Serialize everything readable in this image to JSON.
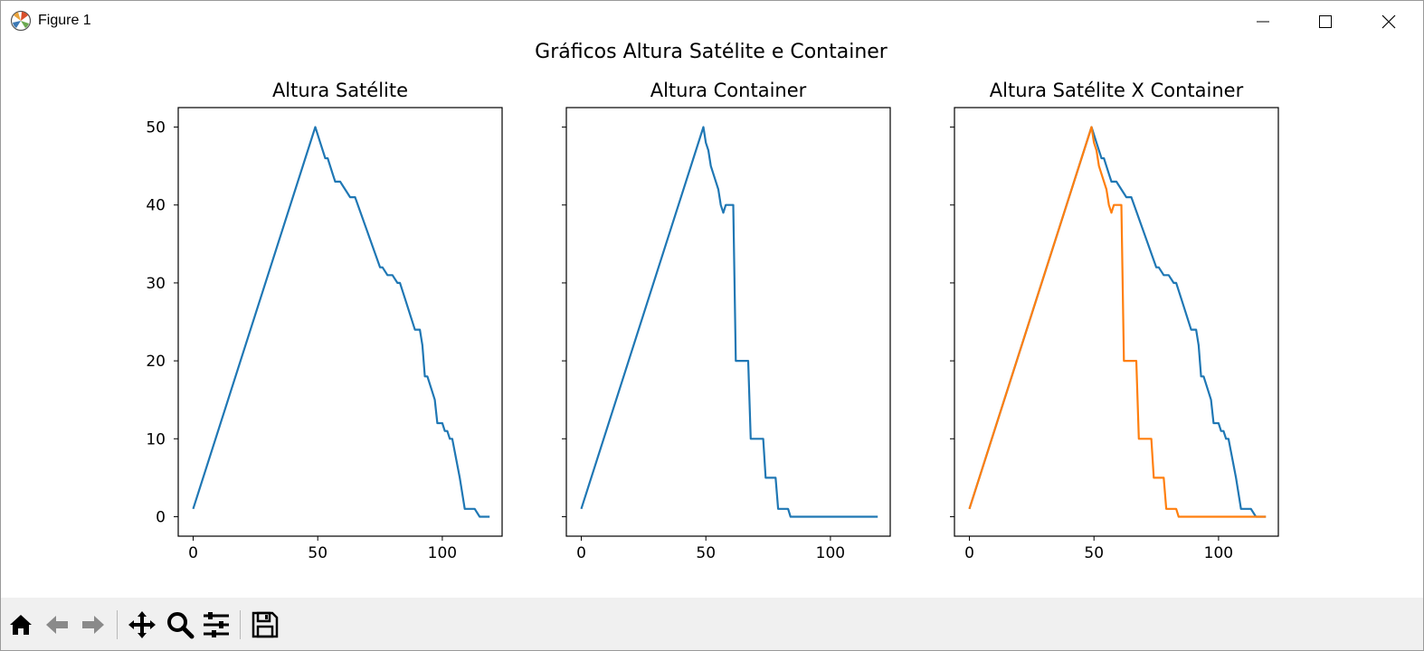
{
  "window": {
    "title": "Figure 1",
    "icons": [
      "matplotlib-logo-icon",
      "minimize-icon",
      "maximize-icon",
      "close-icon"
    ]
  },
  "figure": {
    "suptitle": "Gráficos Altura Satélite e Container"
  },
  "colors": {
    "series_blue": "#1f77b4",
    "series_orange": "#ff7f0e",
    "toolbar_bg": "#f0f0f0"
  },
  "toolbar": {
    "icons": [
      "home-icon",
      "back-arrow-icon",
      "forward-arrow-icon",
      "pan-move-icon",
      "zoom-magnifier-icon",
      "configure-subplots-icon",
      "save-icon"
    ]
  },
  "chart_data": [
    {
      "type": "line",
      "title": "Altura Satélite",
      "xlabel": "",
      "ylabel": "",
      "xlim": [
        -6,
        124
      ],
      "ylim": [
        -2.5,
        52.5
      ],
      "xticks": [
        0,
        50,
        100
      ],
      "yticks": [
        0,
        10,
        20,
        30,
        40,
        50
      ],
      "grid": false,
      "series": [
        {
          "color": "#1f77b4",
          "x": [
            0,
            49,
            51,
            53,
            54,
            56,
            57,
            59,
            63,
            65,
            75,
            76,
            78,
            80,
            82,
            83,
            85,
            86,
            89,
            91,
            92,
            93,
            94,
            96,
            97,
            98,
            99,
            100,
            101,
            102,
            103,
            104,
            107,
            109,
            113,
            115,
            119
          ],
          "y": [
            1,
            50,
            48,
            46,
            46,
            44,
            43,
            43,
            41,
            41,
            32,
            32,
            31,
            31,
            30,
            30,
            28,
            27,
            24,
            24,
            22,
            18,
            18,
            16,
            15,
            12,
            12,
            12,
            11,
            11,
            10,
            10,
            5,
            1,
            1,
            0,
            0
          ]
        }
      ]
    },
    {
      "type": "line",
      "title": "Altura Container",
      "xlabel": "",
      "ylabel": "",
      "xlim": [
        -6,
        124
      ],
      "ylim": [
        -2.5,
        52.5
      ],
      "xticks": [
        0,
        50,
        100
      ],
      "yticks": [
        0,
        10,
        20,
        30,
        40,
        50
      ],
      "grid": false,
      "series": [
        {
          "color": "#1f77b4",
          "x": [
            0,
            49,
            50,
            51,
            52,
            53,
            55,
            56,
            57,
            58,
            59,
            61,
            62,
            67,
            68,
            73,
            74,
            78,
            79,
            83,
            84,
            119
          ],
          "y": [
            1,
            50,
            48,
            47,
            45,
            44,
            42,
            40,
            39,
            40,
            40,
            40,
            20,
            20,
            10,
            10,
            5,
            5,
            1,
            1,
            0,
            0
          ]
        }
      ]
    },
    {
      "type": "line",
      "title": "Altura Satélite X Container",
      "xlabel": "",
      "ylabel": "",
      "xlim": [
        -6,
        124
      ],
      "ylim": [
        -2.5,
        52.5
      ],
      "xticks": [
        0,
        50,
        100
      ],
      "yticks": [
        0,
        10,
        20,
        30,
        40,
        50
      ],
      "grid": false,
      "series": [
        {
          "color": "#1f77b4",
          "x": [
            0,
            49,
            51,
            53,
            54,
            56,
            57,
            59,
            63,
            65,
            75,
            76,
            78,
            80,
            82,
            83,
            85,
            86,
            89,
            91,
            92,
            93,
            94,
            96,
            97,
            98,
            99,
            100,
            101,
            102,
            103,
            104,
            107,
            109,
            113,
            115,
            119
          ],
          "y": [
            1,
            50,
            48,
            46,
            46,
            44,
            43,
            43,
            41,
            41,
            32,
            32,
            31,
            31,
            30,
            30,
            28,
            27,
            24,
            24,
            22,
            18,
            18,
            16,
            15,
            12,
            12,
            12,
            11,
            11,
            10,
            10,
            5,
            1,
            1,
            0,
            0
          ]
        },
        {
          "color": "#ff7f0e",
          "x": [
            0,
            49,
            50,
            51,
            52,
            53,
            55,
            56,
            57,
            58,
            59,
            61,
            62,
            67,
            68,
            73,
            74,
            78,
            79,
            83,
            84,
            119
          ],
          "y": [
            1,
            50,
            48,
            47,
            45,
            44,
            42,
            40,
            39,
            40,
            40,
            40,
            20,
            20,
            10,
            10,
            5,
            5,
            1,
            1,
            0,
            0
          ]
        }
      ]
    }
  ]
}
